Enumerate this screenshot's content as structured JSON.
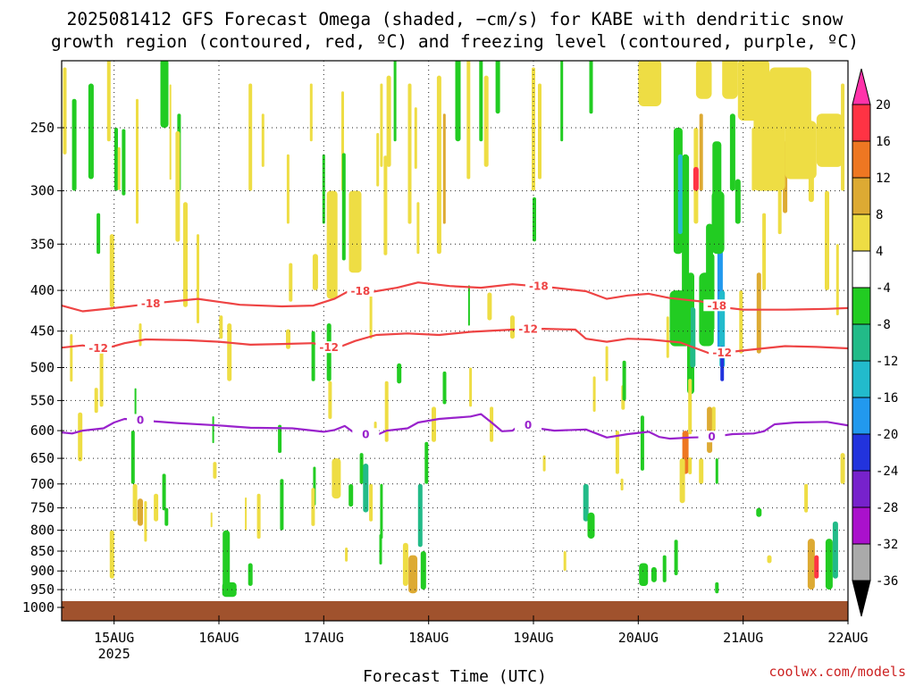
{
  "title_line1": "2025081412 GFS Forecast Omega (shaded, −cm/s) for KABE with dendritic snow",
  "title_line2": "growth region (contoured, red, ºC) and freezing level (contoured, purple, ºC)",
  "xlabel": "Forecast Time (UTC)",
  "credit": "coolwx.com/models",
  "chart_data": {
    "type": "heatmap",
    "title": "2025081412 GFS Forecast Omega (shaded, −cm/s) for KABE with dendritic snow growth region (contoured, red, ºC) and freezing level (contoured, purple, ºC)",
    "xlabel": "Forecast Time (UTC)",
    "ylabel": "",
    "x_range_days": [
      14.5,
      22.0
    ],
    "x_ticks": [
      {
        "day": 15,
        "label": "15AUG",
        "sublabel": "2025"
      },
      {
        "day": 16,
        "label": "16AUG"
      },
      {
        "day": 17,
        "label": "17AUG"
      },
      {
        "day": 18,
        "label": "18AUG"
      },
      {
        "day": 19,
        "label": "19AUG"
      },
      {
        "day": 20,
        "label": "20AUG"
      },
      {
        "day": 21,
        "label": "21AUG"
      },
      {
        "day": 22,
        "label": "22AUG"
      }
    ],
    "y_levels_hpa": [
      250,
      300,
      350,
      400,
      450,
      500,
      550,
      600,
      650,
      700,
      750,
      800,
      850,
      900,
      950,
      1000
    ],
    "y_range_hpa": [
      200,
      1010
    ],
    "grid": "dotted",
    "colorbar": {
      "labels": [
        20,
        16,
        12,
        8,
        4,
        -4,
        -8,
        -12,
        -16,
        -20,
        -24,
        -28,
        -32,
        -36
      ],
      "bins": [
        {
          "from": 20,
          "to": 99,
          "color": "#ff33aa"
        },
        {
          "from": 16,
          "to": 20,
          "color": "#ff3344"
        },
        {
          "from": 12,
          "to": 16,
          "color": "#ee7722"
        },
        {
          "from": 8,
          "to": 12,
          "color": "#ddaa33"
        },
        {
          "from": 4,
          "to": 8,
          "color": "#eedd44"
        },
        {
          "from": -4,
          "to": 4,
          "color": "#ffffff"
        },
        {
          "from": -8,
          "to": -4,
          "color": "#22cc22"
        },
        {
          "from": -12,
          "to": -8,
          "color": "#22bb88"
        },
        {
          "from": -16,
          "to": -12,
          "color": "#22bbcc"
        },
        {
          "from": -20,
          "to": -16,
          "color": "#2299ee"
        },
        {
          "from": -24,
          "to": -20,
          "color": "#2233dd"
        },
        {
          "from": -28,
          "to": -24,
          "color": "#7722cc"
        },
        {
          "from": -32,
          "to": -28,
          "color": "#aa11cc"
        },
        {
          "from": -36,
          "to": -32,
          "color": "#aaaaaa"
        },
        {
          "from": -99,
          "to": -36,
          "color": "#000000"
        }
      ]
    },
    "contours": [
      {
        "name": "-18",
        "color": "#ee4444",
        "points": [
          [
            14.5,
            418
          ],
          [
            14.7,
            425
          ],
          [
            15.0,
            421
          ],
          [
            15.4,
            415
          ],
          [
            15.8,
            410
          ],
          [
            16.2,
            417
          ],
          [
            16.6,
            419
          ],
          [
            16.9,
            418
          ],
          [
            17.1,
            410
          ],
          [
            17.25,
            400
          ],
          [
            17.45,
            402
          ],
          [
            17.7,
            397
          ],
          [
            17.9,
            391
          ],
          [
            18.2,
            395
          ],
          [
            18.5,
            397
          ],
          [
            18.8,
            393
          ],
          [
            19.2,
            397
          ],
          [
            19.5,
            401
          ],
          [
            19.7,
            410
          ],
          [
            19.9,
            406
          ],
          [
            20.1,
            404
          ],
          [
            20.3,
            409
          ],
          [
            20.6,
            413
          ],
          [
            20.8,
            420
          ],
          [
            21.0,
            423
          ],
          [
            21.4,
            423
          ],
          [
            21.8,
            422
          ],
          [
            22.0,
            421
          ]
        ],
        "labels": [
          [
            15.35,
            "-18"
          ],
          [
            17.35,
            "-18"
          ],
          [
            19.05,
            "-18"
          ],
          [
            20.75,
            "-18"
          ]
        ]
      },
      {
        "name": "-12",
        "color": "#ee4444",
        "points": [
          [
            14.5,
            472
          ],
          [
            14.7,
            469
          ],
          [
            14.9,
            474
          ],
          [
            15.1,
            466
          ],
          [
            15.3,
            461
          ],
          [
            15.7,
            462
          ],
          [
            16.0,
            464
          ],
          [
            16.3,
            468
          ],
          [
            16.6,
            467
          ],
          [
            16.9,
            466
          ],
          [
            17.1,
            474
          ],
          [
            17.3,
            463
          ],
          [
            17.5,
            455
          ],
          [
            17.8,
            453
          ],
          [
            18.1,
            455
          ],
          [
            18.4,
            451
          ],
          [
            18.8,
            448
          ],
          [
            19.1,
            447
          ],
          [
            19.4,
            448
          ],
          [
            19.5,
            460
          ],
          [
            19.7,
            464
          ],
          [
            19.9,
            460
          ],
          [
            20.1,
            461
          ],
          [
            20.4,
            465
          ],
          [
            20.7,
            481
          ],
          [
            21.0,
            476
          ],
          [
            21.4,
            470
          ],
          [
            21.7,
            471
          ],
          [
            22.0,
            473
          ]
        ],
        "labels": [
          [
            14.85,
            "-12"
          ],
          [
            17.05,
            "-12"
          ],
          [
            18.95,
            "-12"
          ],
          [
            20.8,
            "-12"
          ]
        ]
      },
      {
        "name": "0",
        "color": "#9922cc",
        "points": [
          [
            14.5,
            603
          ],
          [
            14.6,
            605
          ],
          [
            14.7,
            600
          ],
          [
            14.9,
            596
          ],
          [
            15.0,
            586
          ],
          [
            15.1,
            580
          ],
          [
            15.3,
            583
          ],
          [
            15.6,
            587
          ],
          [
            16.0,
            591
          ],
          [
            16.3,
            595
          ],
          [
            16.7,
            596
          ],
          [
            17.0,
            602
          ],
          [
            17.1,
            599
          ],
          [
            17.2,
            592
          ],
          [
            17.3,
            605
          ],
          [
            17.5,
            608
          ],
          [
            17.6,
            600
          ],
          [
            17.8,
            596
          ],
          [
            17.9,
            586
          ],
          [
            18.1,
            580
          ],
          [
            18.4,
            576
          ],
          [
            18.5,
            572
          ],
          [
            18.6,
            586
          ],
          [
            18.7,
            601
          ],
          [
            18.8,
            600
          ],
          [
            18.9,
            586
          ],
          [
            19.0,
            595
          ],
          [
            19.2,
            600
          ],
          [
            19.5,
            598
          ],
          [
            19.7,
            612
          ],
          [
            19.9,
            606
          ],
          [
            20.1,
            602
          ],
          [
            20.2,
            611
          ],
          [
            20.3,
            614
          ],
          [
            20.5,
            612
          ],
          [
            20.7,
            611
          ],
          [
            20.9,
            606
          ],
          [
            21.1,
            605
          ],
          [
            21.2,
            601
          ],
          [
            21.3,
            589
          ],
          [
            21.5,
            586
          ],
          [
            21.8,
            585
          ],
          [
            22.0,
            591
          ]
        ],
        "labels": [
          [
            15.25,
            "0"
          ],
          [
            17.4,
            "0"
          ],
          [
            18.95,
            "0"
          ],
          [
            20.7,
            "0"
          ]
        ]
      }
    ]
  }
}
